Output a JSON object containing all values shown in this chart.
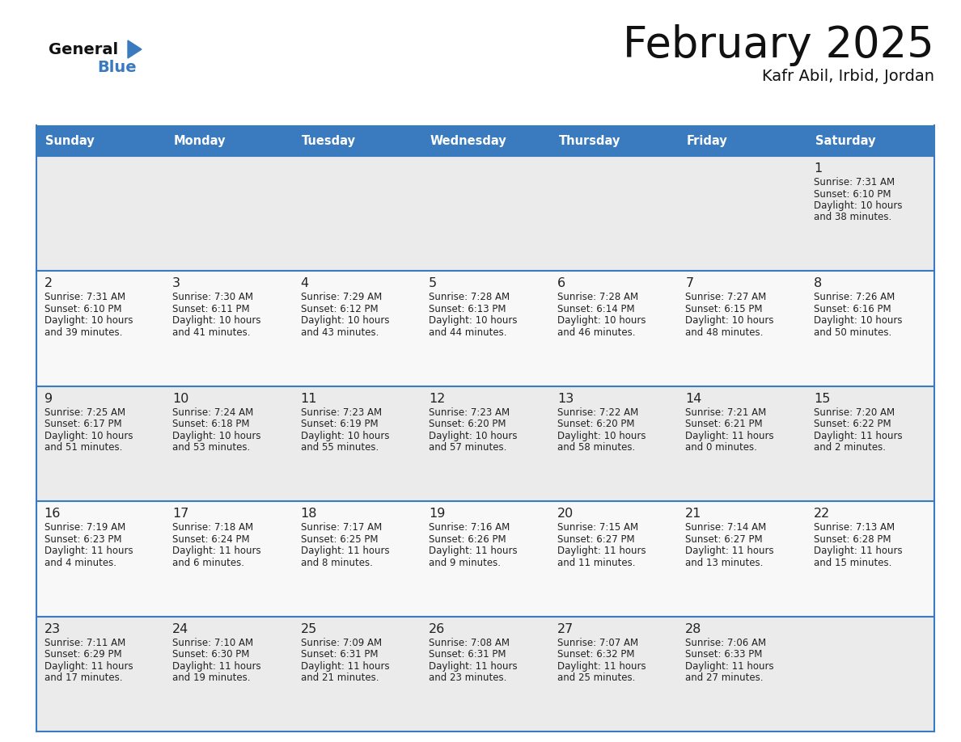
{
  "title": "February 2025",
  "subtitle": "Kafr Abil, Irbid, Jordan",
  "header_color": "#3a7abf",
  "header_text_color": "#ffffff",
  "cell_bg_even": "#ebebeb",
  "cell_bg_odd": "#f8f8f8",
  "line_color": "#3a7abf",
  "day_names": [
    "Sunday",
    "Monday",
    "Tuesday",
    "Wednesday",
    "Thursday",
    "Friday",
    "Saturday"
  ],
  "days": [
    {
      "day": 1,
      "col": 6,
      "row": 0,
      "sunrise": "7:31 AM",
      "sunset": "6:10 PM",
      "daylight": "10 hours and 38 minutes."
    },
    {
      "day": 2,
      "col": 0,
      "row": 1,
      "sunrise": "7:31 AM",
      "sunset": "6:10 PM",
      "daylight": "10 hours and 39 minutes."
    },
    {
      "day": 3,
      "col": 1,
      "row": 1,
      "sunrise": "7:30 AM",
      "sunset": "6:11 PM",
      "daylight": "10 hours and 41 minutes."
    },
    {
      "day": 4,
      "col": 2,
      "row": 1,
      "sunrise": "7:29 AM",
      "sunset": "6:12 PM",
      "daylight": "10 hours and 43 minutes."
    },
    {
      "day": 5,
      "col": 3,
      "row": 1,
      "sunrise": "7:28 AM",
      "sunset": "6:13 PM",
      "daylight": "10 hours and 44 minutes."
    },
    {
      "day": 6,
      "col": 4,
      "row": 1,
      "sunrise": "7:28 AM",
      "sunset": "6:14 PM",
      "daylight": "10 hours and 46 minutes."
    },
    {
      "day": 7,
      "col": 5,
      "row": 1,
      "sunrise": "7:27 AM",
      "sunset": "6:15 PM",
      "daylight": "10 hours and 48 minutes."
    },
    {
      "day": 8,
      "col": 6,
      "row": 1,
      "sunrise": "7:26 AM",
      "sunset": "6:16 PM",
      "daylight": "10 hours and 50 minutes."
    },
    {
      "day": 9,
      "col": 0,
      "row": 2,
      "sunrise": "7:25 AM",
      "sunset": "6:17 PM",
      "daylight": "10 hours and 51 minutes."
    },
    {
      "day": 10,
      "col": 1,
      "row": 2,
      "sunrise": "7:24 AM",
      "sunset": "6:18 PM",
      "daylight": "10 hours and 53 minutes."
    },
    {
      "day": 11,
      "col": 2,
      "row": 2,
      "sunrise": "7:23 AM",
      "sunset": "6:19 PM",
      "daylight": "10 hours and 55 minutes."
    },
    {
      "day": 12,
      "col": 3,
      "row": 2,
      "sunrise": "7:23 AM",
      "sunset": "6:20 PM",
      "daylight": "10 hours and 57 minutes."
    },
    {
      "day": 13,
      "col": 4,
      "row": 2,
      "sunrise": "7:22 AM",
      "sunset": "6:20 PM",
      "daylight": "10 hours and 58 minutes."
    },
    {
      "day": 14,
      "col": 5,
      "row": 2,
      "sunrise": "7:21 AM",
      "sunset": "6:21 PM",
      "daylight": "11 hours and 0 minutes."
    },
    {
      "day": 15,
      "col": 6,
      "row": 2,
      "sunrise": "7:20 AM",
      "sunset": "6:22 PM",
      "daylight": "11 hours and 2 minutes."
    },
    {
      "day": 16,
      "col": 0,
      "row": 3,
      "sunrise": "7:19 AM",
      "sunset": "6:23 PM",
      "daylight": "11 hours and 4 minutes."
    },
    {
      "day": 17,
      "col": 1,
      "row": 3,
      "sunrise": "7:18 AM",
      "sunset": "6:24 PM",
      "daylight": "11 hours and 6 minutes."
    },
    {
      "day": 18,
      "col": 2,
      "row": 3,
      "sunrise": "7:17 AM",
      "sunset": "6:25 PM",
      "daylight": "11 hours and 8 minutes."
    },
    {
      "day": 19,
      "col": 3,
      "row": 3,
      "sunrise": "7:16 AM",
      "sunset": "6:26 PM",
      "daylight": "11 hours and 9 minutes."
    },
    {
      "day": 20,
      "col": 4,
      "row": 3,
      "sunrise": "7:15 AM",
      "sunset": "6:27 PM",
      "daylight": "11 hours and 11 minutes."
    },
    {
      "day": 21,
      "col": 5,
      "row": 3,
      "sunrise": "7:14 AM",
      "sunset": "6:27 PM",
      "daylight": "11 hours and 13 minutes."
    },
    {
      "day": 22,
      "col": 6,
      "row": 3,
      "sunrise": "7:13 AM",
      "sunset": "6:28 PM",
      "daylight": "11 hours and 15 minutes."
    },
    {
      "day": 23,
      "col": 0,
      "row": 4,
      "sunrise": "7:11 AM",
      "sunset": "6:29 PM",
      "daylight": "11 hours and 17 minutes."
    },
    {
      "day": 24,
      "col": 1,
      "row": 4,
      "sunrise": "7:10 AM",
      "sunset": "6:30 PM",
      "daylight": "11 hours and 19 minutes."
    },
    {
      "day": 25,
      "col": 2,
      "row": 4,
      "sunrise": "7:09 AM",
      "sunset": "6:31 PM",
      "daylight": "11 hours and 21 minutes."
    },
    {
      "day": 26,
      "col": 3,
      "row": 4,
      "sunrise": "7:08 AM",
      "sunset": "6:31 PM",
      "daylight": "11 hours and 23 minutes."
    },
    {
      "day": 27,
      "col": 4,
      "row": 4,
      "sunrise": "7:07 AM",
      "sunset": "6:32 PM",
      "daylight": "11 hours and 25 minutes."
    },
    {
      "day": 28,
      "col": 5,
      "row": 4,
      "sunrise": "7:06 AM",
      "sunset": "6:33 PM",
      "daylight": "11 hours and 27 minutes."
    }
  ],
  "num_rows": 5,
  "num_cols": 7
}
